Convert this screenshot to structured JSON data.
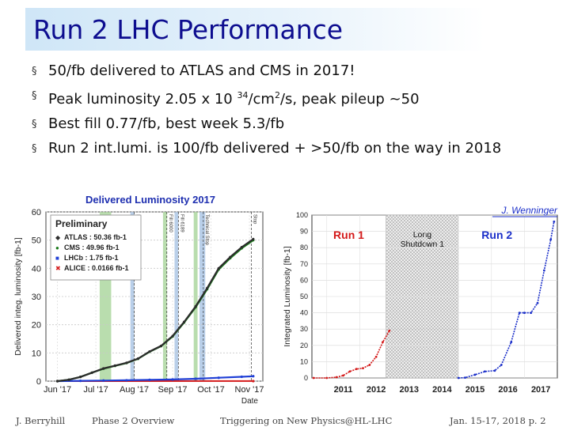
{
  "slide": {
    "title": "Run 2 LHC Performance",
    "bullets": [
      {
        "text": "50/fb delivered to ATLAS and CMS in 2017!"
      },
      {
        "pre": "Peak luminosity 2.05 x 10 ",
        "sup1": "34",
        "mid": "/cm",
        "sup2": "2",
        "post": "/s, peak pileup ~50"
      },
      {
        "text": "Best fill 0.77/fb, best week 5.3/fb"
      },
      {
        "text": "Run 2 int.lumi. is 100/fb delivered + >50/fb on the way in 2018"
      }
    ],
    "bullet_glyph": "§"
  },
  "footer": {
    "author": "J. Berryhill",
    "section": "Phase 2 Overview",
    "event": "Triggering on New Physics@HL-LHC",
    "date_page": "Jan. 15-17, 2018   p. 2"
  },
  "chart_data": [
    {
      "type": "line",
      "title": "Delivered Luminosity 2017",
      "ylabel": "Delivered integ. luminosity [fb-1]",
      "xlabel": "Date",
      "x_ticks": [
        "Jun '17",
        "Jul '17",
        "Aug '17",
        "Sep '17",
        "Oct '17",
        "Nov '17"
      ],
      "y_ticks": [
        0,
        10,
        20,
        30,
        40,
        50,
        60
      ],
      "ylim": [
        0,
        60
      ],
      "legend_title": "Preliminary",
      "legend_position": "top-left",
      "markers": [
        "◆",
        "●",
        "■",
        "✖"
      ],
      "series": [
        {
          "name": "ATLAS : 50.36 fb-1",
          "color": "#2b2b2b",
          "values": [
            [
              0,
              0
            ],
            [
              0.3,
              0.5
            ],
            [
              0.6,
              1.5
            ],
            [
              0.9,
              3
            ],
            [
              1.2,
              4.5
            ],
            [
              1.5,
              5.5
            ],
            [
              1.8,
              6.5
            ],
            [
              2.1,
              8
            ],
            [
              2.4,
              10.5
            ],
            [
              2.7,
              12.5
            ],
            [
              3.0,
              16
            ],
            [
              3.3,
              21
            ],
            [
              3.6,
              26.5
            ],
            [
              3.9,
              33
            ],
            [
              4.2,
              40
            ],
            [
              4.5,
              44
            ],
            [
              4.8,
              47.5
            ],
            [
              5.1,
              50.36
            ]
          ]
        },
        {
          "name": "CMS : 49.96 fb-1",
          "color": "#1a7a1a",
          "values": [
            [
              0,
              0
            ],
            [
              0.3,
              0.5
            ],
            [
              0.6,
              1.5
            ],
            [
              0.9,
              3
            ],
            [
              1.2,
              4.4
            ],
            [
              1.5,
              5.4
            ],
            [
              1.8,
              6.4
            ],
            [
              2.1,
              7.9
            ],
            [
              2.4,
              10.4
            ],
            [
              2.7,
              12.4
            ],
            [
              3.0,
              15.8
            ],
            [
              3.3,
              20.8
            ],
            [
              3.6,
              26.2
            ],
            [
              3.9,
              32.6
            ],
            [
              4.2,
              39.6
            ],
            [
              4.5,
              43.6
            ],
            [
              4.8,
              47.1
            ],
            [
              5.1,
              49.96
            ]
          ]
        },
        {
          "name": "LHCb : 1.75 fb-1",
          "color": "#1f3fd6",
          "values": [
            [
              0,
              0
            ],
            [
              0.6,
              0.1
            ],
            [
              1.2,
              0.2
            ],
            [
              1.8,
              0.3
            ],
            [
              2.4,
              0.45
            ],
            [
              3.0,
              0.6
            ],
            [
              3.6,
              0.85
            ],
            [
              4.2,
              1.2
            ],
            [
              4.8,
              1.55
            ],
            [
              5.1,
              1.75
            ]
          ]
        },
        {
          "name": "ALICE : 0.0166 fb-1",
          "color": "#d41a1a",
          "values": [
            [
              0,
              0
            ],
            [
              5.1,
              0.0166
            ]
          ]
        }
      ],
      "shaded_periods": [
        [
          1.1,
          1.4
        ],
        [
          1.9,
          2.0
        ],
        [
          2.75,
          2.85
        ],
        [
          3.05,
          3.15
        ],
        [
          3.55,
          3.65
        ],
        [
          3.7,
          3.85
        ]
      ],
      "shaded_colors": [
        "#9bcf8c",
        "#9bbadf"
      ],
      "vertical_notes": [
        "Fill 5700",
        "Fill 6000",
        "Fill 6189",
        "Technical Stop",
        "Stop"
      ],
      "grid": true
    },
    {
      "type": "line",
      "annotation": "J. Wenninger",
      "ylabel": "Integrated Luminosity [fb-1]",
      "x_ticks": [
        "2011",
        "2012",
        "2013",
        "2014",
        "2015",
        "2016",
        "2017"
      ],
      "y_ticks": [
        0,
        10,
        20,
        30,
        40,
        50,
        60,
        70,
        80,
        90,
        100
      ],
      "ylim": [
        0,
        100
      ],
      "shaded_label": "Long Shutdown 1",
      "shaded_range": [
        2012.8,
        2015.0
      ],
      "series": [
        {
          "name": "Run 1",
          "color": "#d41a1a",
          "values": [
            [
              2010.6,
              0
            ],
            [
              2011.0,
              0
            ],
            [
              2011.3,
              0.5
            ],
            [
              2011.5,
              1.5
            ],
            [
              2011.7,
              4.0
            ],
            [
              2011.9,
              5.5
            ],
            [
              2012.1,
              6.0
            ],
            [
              2012.3,
              8
            ],
            [
              2012.5,
              13
            ],
            [
              2012.7,
              22
            ],
            [
              2012.9,
              29
            ]
          ]
        },
        {
          "name": "Run 2",
          "color": "#1b2fc9",
          "values": [
            [
              2015.0,
              0
            ],
            [
              2015.2,
              0.2
            ],
            [
              2015.5,
              2
            ],
            [
              2015.8,
              4
            ],
            [
              2016.1,
              4.5
            ],
            [
              2016.3,
              8
            ],
            [
              2016.6,
              22
            ],
            [
              2016.85,
              40
            ],
            [
              2017.0,
              40
            ],
            [
              2017.2,
              40
            ],
            [
              2017.4,
              46
            ],
            [
              2017.6,
              66
            ],
            [
              2017.8,
              85
            ],
            [
              2017.9,
              96
            ]
          ]
        }
      ],
      "grid": true
    }
  ]
}
